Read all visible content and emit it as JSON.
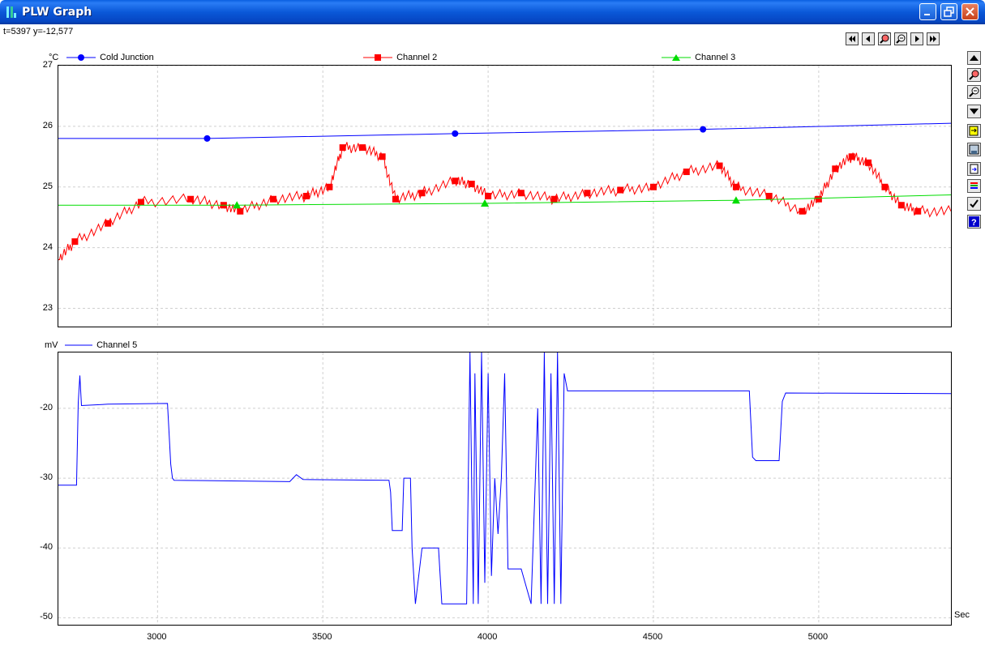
{
  "window": {
    "title": "PLW Graph"
  },
  "readout": "t=5397 y=-12,577",
  "nav_buttons": [
    "first-page-icon",
    "prev-page-icon",
    "zoom-in-icon",
    "zoom-out-icon",
    "next-page-icon",
    "last-page-icon"
  ],
  "side_tools": [
    "move-up-icon",
    "zoom-in-icon",
    "zoom-out-icon",
    "move-down-icon",
    "export-icon",
    "save-icon",
    "copy-icon",
    "channels-icon",
    "check-icon",
    "help-icon"
  ],
  "colors": {
    "titlebar": "#0a58d8",
    "cold_junction": "#0000ff",
    "channel2": "#ff0000",
    "channel3": "#00dd00",
    "channel5": "#0000ff"
  },
  "x_axis": {
    "unit": "Sec",
    "ticks": [
      "3000",
      "3500",
      "4000",
      "4500",
      "5000"
    ]
  },
  "chart_data": [
    {
      "type": "line",
      "unit": "°C",
      "ylim": [
        22.7,
        27.0
      ],
      "y_ticks": [
        "27",
        "26",
        "25",
        "24",
        "23"
      ],
      "xlim": [
        2700,
        5400
      ],
      "series": [
        {
          "name": "Cold Junction",
          "marker": "circle",
          "x": [
            2700,
            3150,
            3900,
            4650,
            5400
          ],
          "y": [
            25.8,
            25.8,
            25.88,
            25.95,
            26.05
          ]
        },
        {
          "name": "Channel 2",
          "marker": "square",
          "x": [
            2700,
            2750,
            2850,
            2950,
            3100,
            3200,
            3250,
            3350,
            3450,
            3520,
            3560,
            3620,
            3680,
            3720,
            3800,
            3900,
            3950,
            4000,
            4100,
            4200,
            4300,
            4400,
            4500,
            4600,
            4700,
            4750,
            4850,
            4950,
            5000,
            5050,
            5100,
            5150,
            5200,
            5250,
            5300,
            5400
          ],
          "y": [
            23.8,
            24.1,
            24.4,
            24.75,
            24.8,
            24.7,
            24.6,
            24.8,
            24.85,
            25.0,
            25.65,
            25.65,
            25.5,
            24.8,
            24.9,
            25.1,
            25.05,
            24.85,
            24.9,
            24.8,
            24.9,
            24.95,
            25.0,
            25.25,
            25.35,
            25.0,
            24.85,
            24.6,
            24.8,
            25.3,
            25.5,
            25.4,
            25.0,
            24.7,
            24.6,
            24.6
          ]
        },
        {
          "name": "Channel 3",
          "marker": "triangle",
          "x": [
            2700,
            3240,
            3990,
            4750,
            5400
          ],
          "y": [
            24.7,
            24.7,
            24.73,
            24.78,
            24.87
          ]
        }
      ]
    },
    {
      "type": "line",
      "unit": "mV",
      "ylim": [
        -51,
        -12
      ],
      "y_ticks": [
        "-20",
        "-30",
        "-40",
        "-50"
      ],
      "xlim": [
        2700,
        5400
      ],
      "series": [
        {
          "name": "Channel 5",
          "x": [
            2700,
            2755,
            2760,
            2765,
            2770,
            2850,
            3030,
            3040,
            3045,
            3050,
            3400,
            3420,
            3440,
            3700,
            3705,
            3710,
            3740,
            3745,
            3765,
            3770,
            3780,
            3800,
            3850,
            3860,
            3870,
            3880,
            3935,
            3945,
            3955,
            3960,
            3970,
            3980,
            3990,
            4000,
            4010,
            4020,
            4030,
            4040,
            4050,
            4060,
            4100,
            4130,
            4150,
            4160,
            4170,
            4180,
            4190,
            4200,
            4210,
            4220,
            4230,
            4240,
            4790,
            4800,
            4810,
            4880,
            4890,
            4900,
            5400
          ],
          "y": [
            -31,
            -31,
            -19.2,
            -15.3,
            -19.6,
            -19.4,
            -19.3,
            -28,
            -30,
            -30.3,
            -30.5,
            -29.5,
            -30.2,
            -30.3,
            -32,
            -37.5,
            -37.5,
            -30,
            -30,
            -40,
            -48,
            -40,
            -40,
            -48,
            -48,
            -48,
            -48,
            -12,
            -48,
            -15,
            -48,
            -12,
            -45,
            -15,
            -44,
            -30,
            -38,
            -30,
            -15,
            -43,
            -43,
            -48,
            -20,
            -48,
            -12,
            -48,
            -15,
            -48,
            -12,
            -48,
            -15,
            -17.5,
            -17.5,
            -27,
            -27.5,
            -27.5,
            -19,
            -17.8,
            -17.9
          ]
        }
      ]
    }
  ]
}
